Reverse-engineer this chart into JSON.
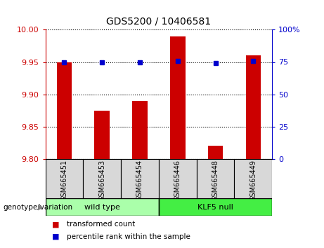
{
  "title": "GDS5200 / 10406581",
  "categories": [
    "GSM665451",
    "GSM665453",
    "GSM665454",
    "GSM665446",
    "GSM665448",
    "GSM665449"
  ],
  "bar_values": [
    9.95,
    9.875,
    9.89,
    9.99,
    9.82,
    9.96
  ],
  "percentile_values": [
    75,
    75,
    75,
    76,
    74,
    76
  ],
  "ylim_left": [
    9.8,
    10.0
  ],
  "ylim_right": [
    0,
    100
  ],
  "yticks_left": [
    9.8,
    9.85,
    9.9,
    9.95,
    10.0
  ],
  "yticks_right": [
    0,
    25,
    50,
    75,
    100
  ],
  "bar_color": "#cc0000",
  "dot_color": "#0000cc",
  "bar_bottom": 9.8,
  "groups": [
    {
      "label": "wild type",
      "indices": [
        0,
        1,
        2
      ],
      "color": "#aaffaa"
    },
    {
      "label": "KLF5 null",
      "indices": [
        3,
        4,
        5
      ],
      "color": "#44ee44"
    }
  ],
  "genotype_label": "genotype/variation",
  "legend_items": [
    {
      "label": "transformed count",
      "color": "#cc0000"
    },
    {
      "label": "percentile rank within the sample",
      "color": "#0000cc"
    }
  ],
  "tick_color_left": "#cc0000",
  "tick_color_right": "#0000cc",
  "xtick_bg_color": "#d8d8d8",
  "plot_bg": "#ffffff"
}
